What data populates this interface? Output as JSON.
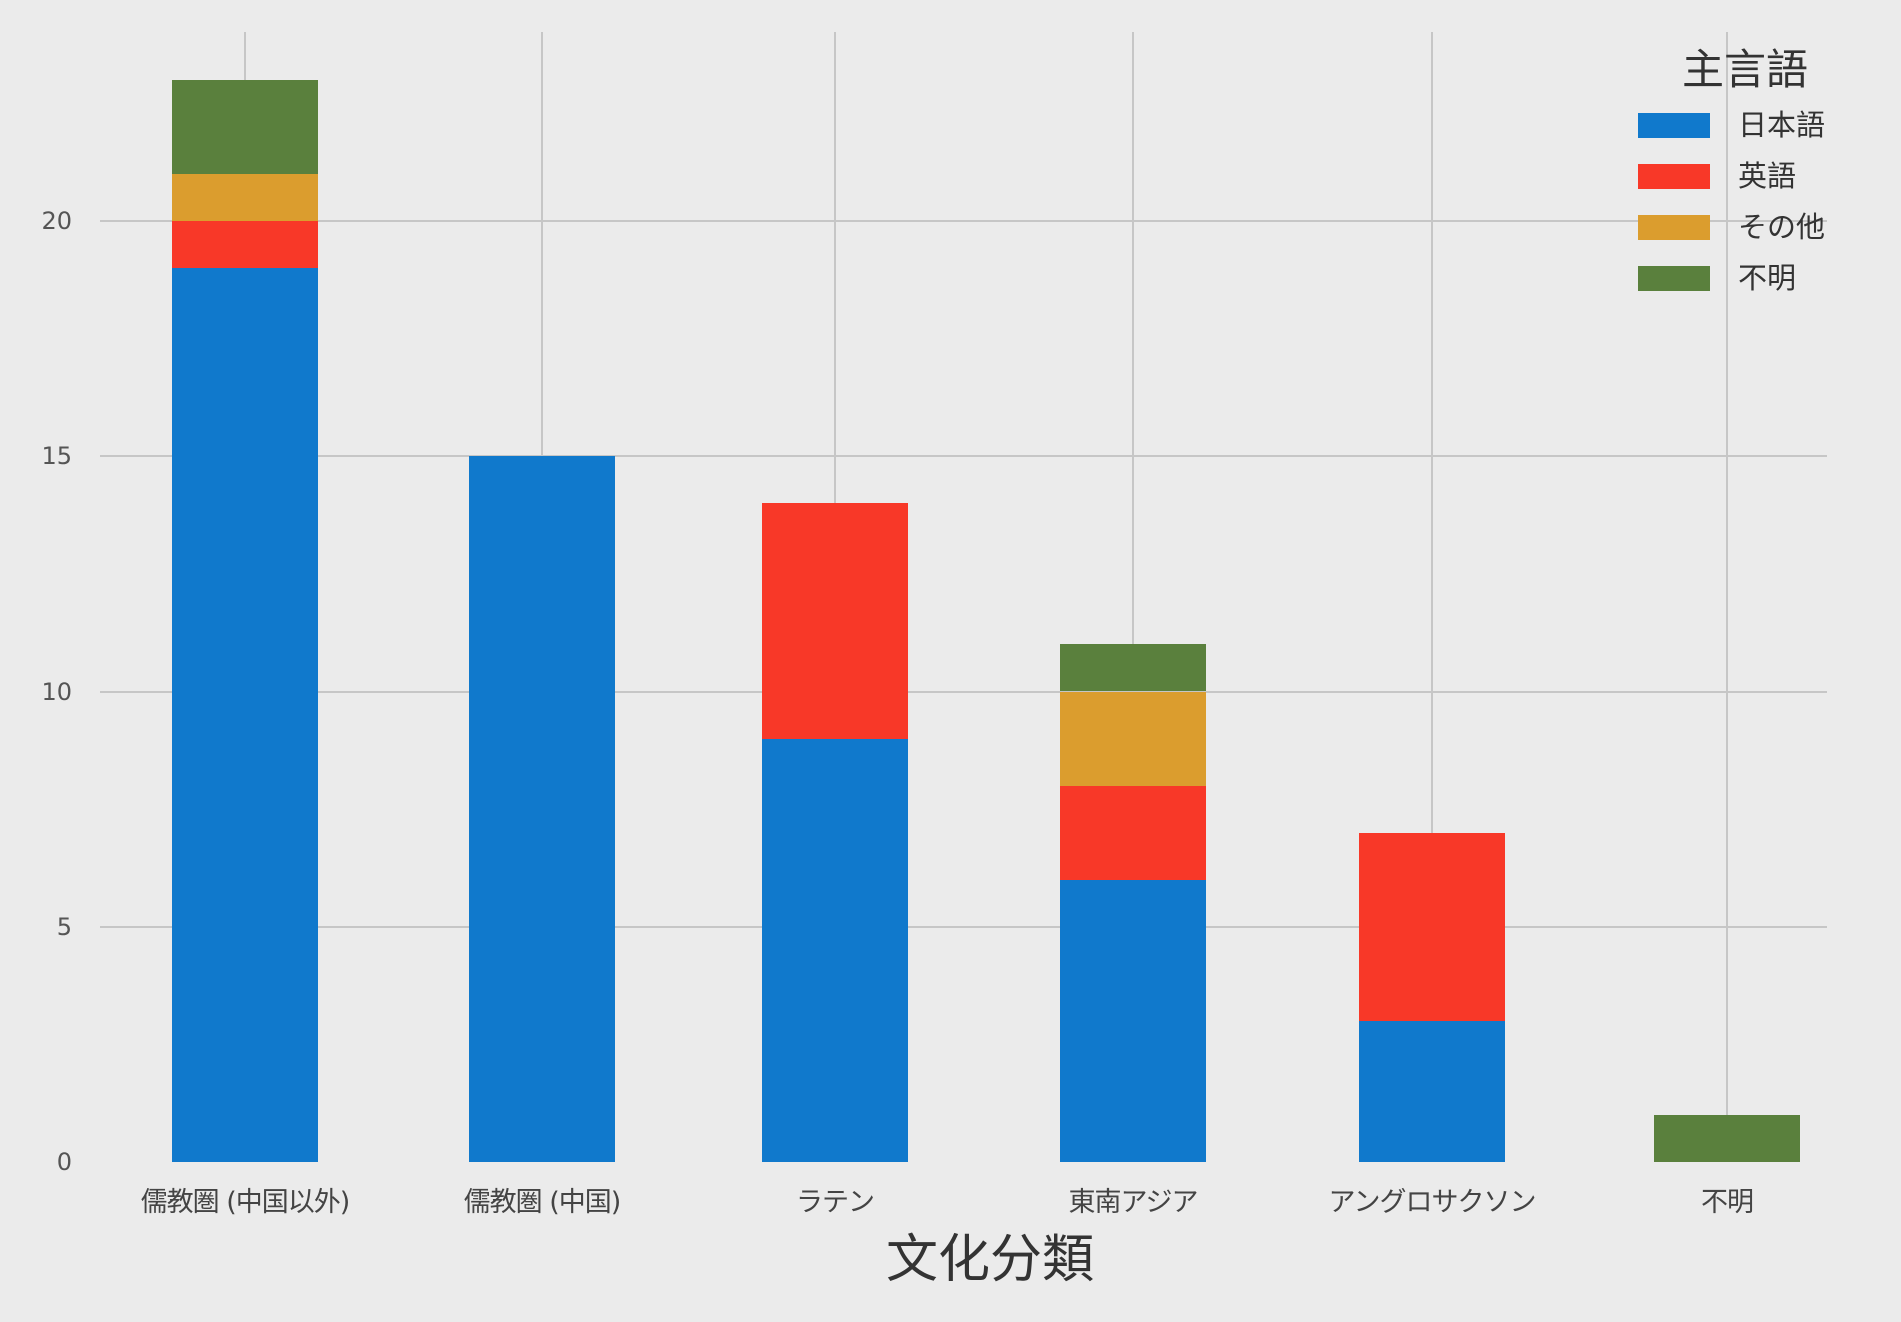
{
  "chart_data": {
    "type": "bar",
    "stacked": true,
    "title": "",
    "xlabel": "文化分類",
    "ylabel": "",
    "ylim": [
      0,
      24
    ],
    "yticks": [
      0,
      5,
      10,
      15,
      20
    ],
    "grid": true,
    "legend_title": "主言語",
    "legend_position": "upper right",
    "categories": [
      "儒教圏 (中国以外)",
      "儒教圏 (中国)",
      "ラテン",
      "東南アジア",
      "アングロサクソン",
      "不明"
    ],
    "series": [
      {
        "name": "日本語",
        "color": "#1079cc",
        "values": [
          19,
          15,
          9,
          6,
          3,
          0
        ]
      },
      {
        "name": "英語",
        "color": "#f83828",
        "values": [
          1,
          0,
          5,
          2,
          4,
          0
        ]
      },
      {
        "name": "その他",
        "color": "#db9d2e",
        "values": [
          1,
          0,
          0,
          2,
          0,
          0
        ]
      },
      {
        "name": "不明",
        "color": "#5a803d",
        "values": [
          2,
          0,
          0,
          1,
          0,
          1
        ]
      }
    ],
    "totals": [
      23,
      15,
      14,
      11,
      7,
      1
    ]
  },
  "style": {
    "background": "#ebebeb",
    "grid_color": "#c6c6c6"
  }
}
